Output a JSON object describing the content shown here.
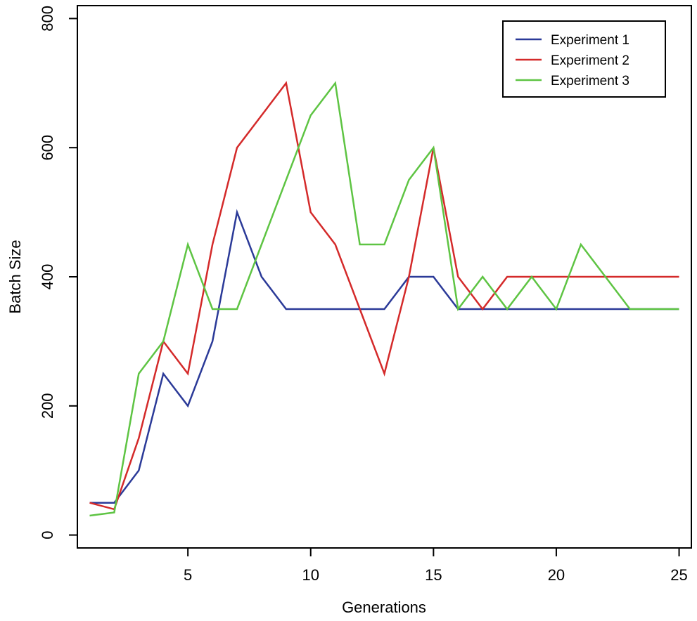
{
  "chart_data": {
    "type": "line",
    "xlabel": "Generations",
    "ylabel": "Batch Size",
    "xlim": [
      0.5,
      25.5
    ],
    "ylim": [
      -20,
      820
    ],
    "x_ticks": [
      5,
      10,
      15,
      20,
      25
    ],
    "y_ticks": [
      0,
      200,
      400,
      600,
      800
    ],
    "grid": false,
    "legend_position": "top-right",
    "x": [
      1,
      2,
      3,
      4,
      5,
      6,
      7,
      8,
      9,
      10,
      11,
      12,
      13,
      14,
      15,
      16,
      17,
      18,
      19,
      20,
      21,
      22,
      23,
      24,
      25
    ],
    "series": [
      {
        "name": "Experiment 1",
        "color": "#2b3a98",
        "values": [
          50,
          50,
          100,
          250,
          200,
          300,
          500,
          400,
          350,
          350,
          350,
          350,
          350,
          400,
          400,
          350,
          350,
          350,
          350,
          350,
          350,
          350,
          350,
          350,
          350
        ]
      },
      {
        "name": "Experiment 2",
        "color": "#d42a2a",
        "values": [
          50,
          40,
          150,
          300,
          250,
          450,
          600,
          650,
          700,
          500,
          450,
          350,
          250,
          400,
          600,
          400,
          350,
          400,
          400,
          400,
          400,
          400,
          400,
          400,
          400
        ]
      },
      {
        "name": "Experiment 3",
        "color": "#5ec443",
        "values": [
          30,
          35,
          250,
          300,
          450,
          350,
          350,
          450,
          550,
          650,
          700,
          450,
          450,
          550,
          600,
          350,
          400,
          350,
          400,
          350,
          450,
          400,
          350,
          350,
          350
        ]
      }
    ]
  }
}
